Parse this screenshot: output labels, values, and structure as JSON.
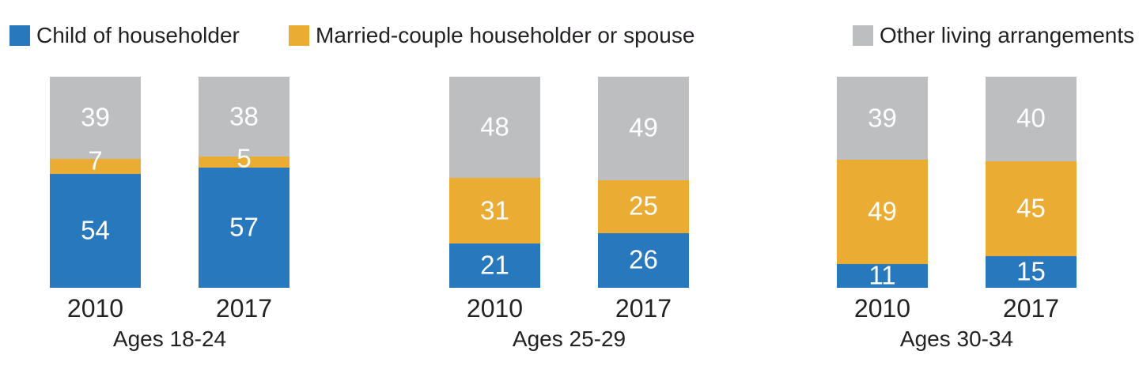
{
  "chart_data": {
    "type": "bar",
    "stacked": true,
    "unit": "percent",
    "ylim": [
      0,
      100
    ],
    "grid": false,
    "legend_position": "top",
    "legend": [
      {
        "label": "Child of householder",
        "color": "#2878BE"
      },
      {
        "label": "Married-couple householder or spouse",
        "color": "#EBAC34"
      },
      {
        "label": "Other living arrangements",
        "color": "#BCBEC0"
      }
    ],
    "categories": [
      "2010",
      "2017"
    ],
    "groups": [
      {
        "label": "Ages 18-24",
        "bars": [
          {
            "year": "2010",
            "segments": [
              54,
              7,
              39
            ]
          },
          {
            "year": "2017",
            "segments": [
              57,
              5,
              38
            ]
          }
        ]
      },
      {
        "label": "Ages 25-29",
        "bars": [
          {
            "year": "2010",
            "segments": [
              21,
              31,
              48
            ]
          },
          {
            "year": "2017",
            "segments": [
              26,
              25,
              49
            ]
          }
        ]
      },
      {
        "label": "Ages 30-34",
        "bars": [
          {
            "year": "2010",
            "segments": [
              11,
              49,
              39
            ]
          },
          {
            "year": "2017",
            "segments": [
              15,
              45,
              40
            ]
          }
        ]
      }
    ],
    "series": [
      {
        "name": "Child of householder",
        "values": [
          54,
          57,
          21,
          26,
          11,
          15
        ]
      },
      {
        "name": "Married-couple householder or spouse",
        "values": [
          7,
          5,
          31,
          25,
          49,
          45
        ]
      },
      {
        "name": "Other living arrangements",
        "values": [
          39,
          38,
          48,
          49,
          39,
          40
        ]
      }
    ]
  },
  "layout_text": {
    "note": ""
  }
}
